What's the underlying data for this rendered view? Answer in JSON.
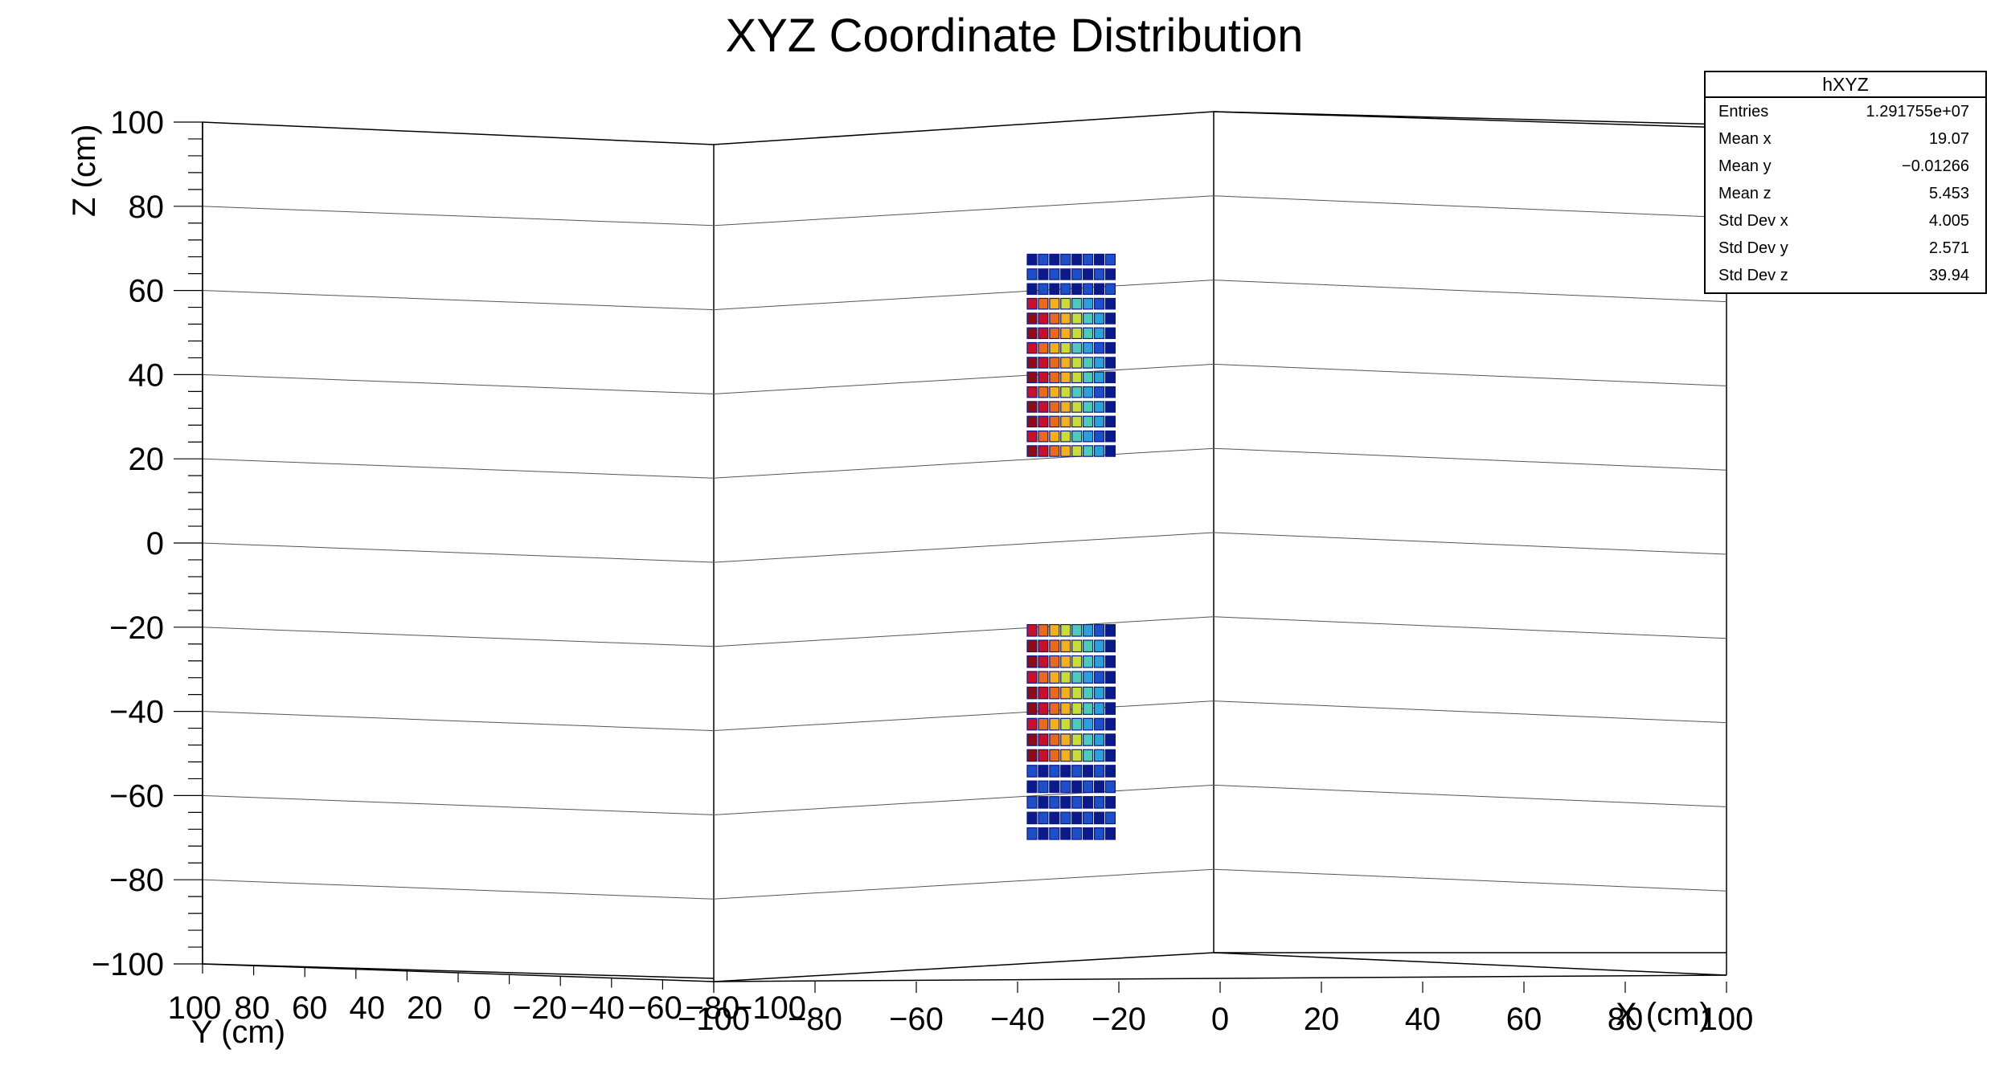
{
  "chart_data": {
    "type": "lego3d",
    "title": "XYZ Coordinate Distribution",
    "xlabel": "X (cm)",
    "ylabel": "Y (cm)",
    "zlabel": "Z (cm)",
    "xlim": [
      -100,
      100
    ],
    "ylim": [
      -100,
      100
    ],
    "zlim": [
      -100,
      100
    ],
    "grid": true,
    "x_ticks": [
      "−100",
      "−80",
      "−60",
      "−40",
      "−20",
      "0",
      "20",
      "40",
      "60",
      "80",
      "100"
    ],
    "y_ticks": [
      "100",
      "80",
      "60",
      "40",
      "20",
      "0",
      "−20",
      "−40",
      "−60",
      "−80",
      "−100"
    ],
    "z_ticks": [
      "100",
      "80",
      "60",
      "40",
      "20",
      "0",
      "−20",
      "−40",
      "−60",
      "−80",
      "−100"
    ],
    "colors": [
      "#0b1a8a",
      "#1f4fc8",
      "#2f9fd8",
      "#52c9b8",
      "#c8dc3a",
      "#f0b020",
      "#e86a1c",
      "#c8102a",
      "#8c0d18"
    ],
    "clusters": [
      {
        "x": [
          -40,
          -22
        ],
        "z": [
          20,
          69
        ]
      },
      {
        "x": [
          -40,
          -22
        ],
        "z": [
          -71,
          -19
        ]
      }
    ]
  },
  "stats": {
    "title": "hXYZ",
    "rows": [
      {
        "label": "Entries",
        "value": "1.291755e+07"
      },
      {
        "label": "Mean x",
        "value": "19.07"
      },
      {
        "label": "Mean y",
        "value": "−0.01266"
      },
      {
        "label": "Mean z",
        "value": "5.453"
      },
      {
        "label": "Std Dev x",
        "value": "4.005"
      },
      {
        "label": "Std Dev y",
        "value": "2.571"
      },
      {
        "label": "Std Dev z",
        "value": "39.94"
      }
    ]
  }
}
